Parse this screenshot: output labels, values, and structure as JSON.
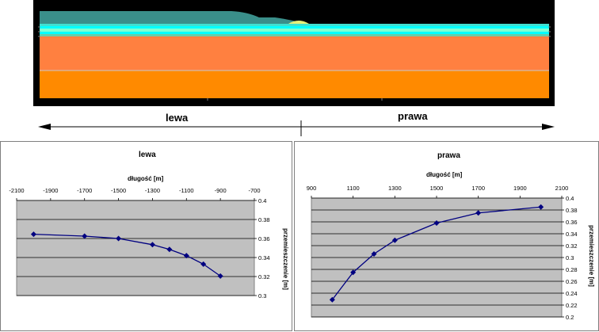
{
  "labels": {
    "left": "lewa",
    "right": "prawa"
  },
  "chart_data": [
    {
      "type": "line",
      "title": "lewa",
      "xlabel": "długość [m]",
      "ylabel": "przemieszczenie [m]",
      "x_ticks": [
        "-2100",
        "-1900",
        "-1700",
        "-1500",
        "-1300",
        "-1100",
        "-900",
        "-700"
      ],
      "y_ticks": [
        "0.4",
        "0.38",
        "0.36",
        "0.34",
        "0.32",
        "0.3"
      ],
      "xlim": [
        -2100,
        -700
      ],
      "ylim": [
        0.3,
        0.4
      ],
      "x_axis_position": "top",
      "y_axis_position": "right",
      "grid": true,
      "series": [
        {
          "color": "#000080",
          "x": [
            -2000,
            -1700,
            -1500,
            -1300,
            -1200,
            -1100,
            -1000,
            -900
          ],
          "y": [
            0.3645,
            0.3625,
            0.36,
            0.3535,
            0.3485,
            0.342,
            0.333,
            0.3205
          ]
        }
      ]
    },
    {
      "type": "line",
      "title": "prawa",
      "xlabel": "długość [m]",
      "ylabel": "przemieszczenie [m]",
      "x_ticks": [
        "900",
        "1100",
        "1300",
        "1500",
        "1700",
        "1900",
        "2100"
      ],
      "y_ticks": [
        "0.4",
        "0.38",
        "0.36",
        "0.34",
        "0.32",
        "0.3",
        "0.28",
        "0.26",
        "0.24",
        "0.22",
        "0.2"
      ],
      "xlim": [
        900,
        2100
      ],
      "ylim": [
        0.2,
        0.4
      ],
      "x_axis_position": "top",
      "y_axis_position": "right",
      "grid": true,
      "series": [
        {
          "color": "#000080",
          "x": [
            1000,
            1100,
            1200,
            1300,
            1500,
            1700,
            2000
          ],
          "y": [
            0.229,
            0.275,
            0.306,
            0.329,
            0.358,
            0.375,
            0.385
          ]
        }
      ]
    }
  ]
}
